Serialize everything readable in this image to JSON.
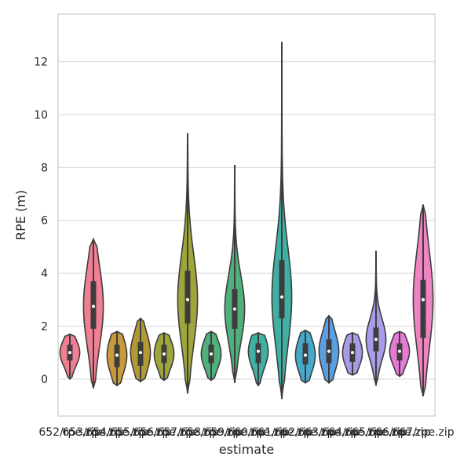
{
  "chart_data": {
    "type": "violin",
    "title": "",
    "xlabel": "estimate",
    "ylabel": "RPE (m)",
    "ylim": [
      -1.4,
      13.8
    ],
    "yticks": [
      0,
      2,
      4,
      6,
      8,
      10,
      12
    ],
    "grid": "horizontal",
    "x_tick_labels_overlapping": "652/653/654/655/656/657/658/659/660/661/662/663/664/665/666/667/rpe.zip",
    "categories": [
      "652/rpe.zip",
      "653/rpe.zip",
      "654/rpe.zip",
      "655/rpe.zip",
      "656/rpe.zip",
      "657/rpe.zip",
      "658/rpe.zip",
      "659/rpe.zip",
      "660/rpe.zip",
      "661/rpe.zip",
      "662/rpe.zip",
      "663/rpe.zip",
      "664/rpe.zip",
      "665/rpe.zip",
      "666/rpe.zip",
      "667/rpe.zip"
    ],
    "colors": [
      "#f07f91",
      "#f07f91",
      "#c99a3a",
      "#b39a33",
      "#9ea63a",
      "#9ea63a",
      "#4fb07b",
      "#4fb07b",
      "#3fb0a3",
      "#3fb0a3",
      "#45a9c9",
      "#5b9fe0",
      "#a89be8",
      "#a89be8",
      "#e57ad8",
      "#f083c2"
    ],
    "series": [
      {
        "min": 0.0,
        "max": 1.7,
        "q1": 0.7,
        "median": 1.0,
        "q3": 1.3
      },
      {
        "min": -0.35,
        "max": 5.3,
        "q1": 1.9,
        "median": 2.75,
        "q3": 3.7
      },
      {
        "min": -0.25,
        "max": 1.8,
        "q1": 0.45,
        "median": 0.9,
        "q3": 1.3
      },
      {
        "min": -0.1,
        "max": 2.3,
        "q1": 0.5,
        "median": 1.0,
        "q3": 1.4
      },
      {
        "min": -0.05,
        "max": 1.75,
        "q1": 0.6,
        "median": 0.95,
        "q3": 1.3
      },
      {
        "min": -0.55,
        "max": 9.3,
        "q1": 2.1,
        "median": 3.0,
        "q3": 4.1
      },
      {
        "min": -0.05,
        "max": 1.8,
        "q1": 0.6,
        "median": 0.95,
        "q3": 1.3
      },
      {
        "min": -0.15,
        "max": 8.1,
        "q1": 1.9,
        "median": 2.65,
        "q3": 3.4
      },
      {
        "min": -0.25,
        "max": 1.75,
        "q1": 0.6,
        "median": 1.05,
        "q3": 1.35
      },
      {
        "min": -0.75,
        "max": 12.75,
        "q1": 2.3,
        "median": 3.1,
        "q3": 4.5
      },
      {
        "min": -0.15,
        "max": 1.85,
        "q1": 0.55,
        "median": 0.9,
        "q3": 1.35
      },
      {
        "min": -0.15,
        "max": 2.4,
        "q1": 0.6,
        "median": 1.05,
        "q3": 1.5
      },
      {
        "min": 0.15,
        "max": 1.75,
        "q1": 0.65,
        "median": 1.0,
        "q3": 1.35
      },
      {
        "min": -0.25,
        "max": 4.85,
        "q1": 1.05,
        "median": 1.5,
        "q3": 1.95
      },
      {
        "min": 0.1,
        "max": 1.8,
        "q1": 0.7,
        "median": 1.05,
        "q3": 1.35
      },
      {
        "min": -0.65,
        "max": 6.6,
        "q1": 1.55,
        "median": 3.0,
        "q3": 3.75
      }
    ]
  }
}
